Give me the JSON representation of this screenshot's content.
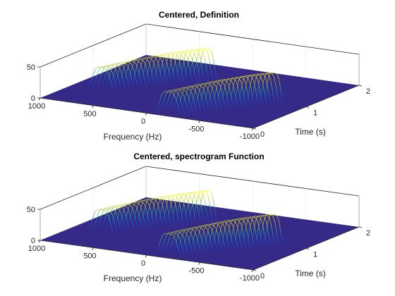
{
  "chart_data": [
    {
      "type": "surface-waterfall",
      "title": "Centered, Definition",
      "xlabel": "Frequency (Hz)",
      "ylabel": "Time (s)",
      "zlabel": "",
      "xlim": [
        -1000,
        1000
      ],
      "ylim": [
        0,
        2
      ],
      "zlim": [
        0,
        50
      ],
      "xticks": [
        1000,
        500,
        0,
        -500,
        -1000
      ],
      "yticks": [
        0,
        1,
        2
      ],
      "zticks": [
        0,
        50
      ],
      "colormap": "parula",
      "floor_color": "#352a87",
      "series": [
        {
          "time_start": 0.55,
          "time_end": 1.45,
          "freq_start": 700,
          "freq_end": 150,
          "peak": 50
        },
        {
          "time_start": 0.05,
          "time_end": 0.95,
          "freq_start": -180,
          "freq_end": -720,
          "peak": 50
        }
      ]
    },
    {
      "type": "surface-waterfall",
      "title": "Centered, spectrogram Function",
      "xlabel": "Frequency (Hz)",
      "ylabel": "Time (s)",
      "zlabel": "",
      "xlim": [
        -1000,
        1000
      ],
      "ylim": [
        0,
        2
      ],
      "zlim": [
        0,
        50
      ],
      "xticks": [
        1000,
        500,
        0,
        -500,
        -1000
      ],
      "yticks": [
        0,
        1,
        2
      ],
      "zticks": [
        0,
        50
      ],
      "colormap": "parula",
      "floor_color": "#352a87",
      "series": [
        {
          "time_start": 0.55,
          "time_end": 1.45,
          "freq_start": 700,
          "freq_end": 150,
          "peak": 50
        },
        {
          "time_start": 0.05,
          "time_end": 0.95,
          "freq_start": -180,
          "freq_end": -720,
          "peak": 50
        }
      ]
    }
  ]
}
